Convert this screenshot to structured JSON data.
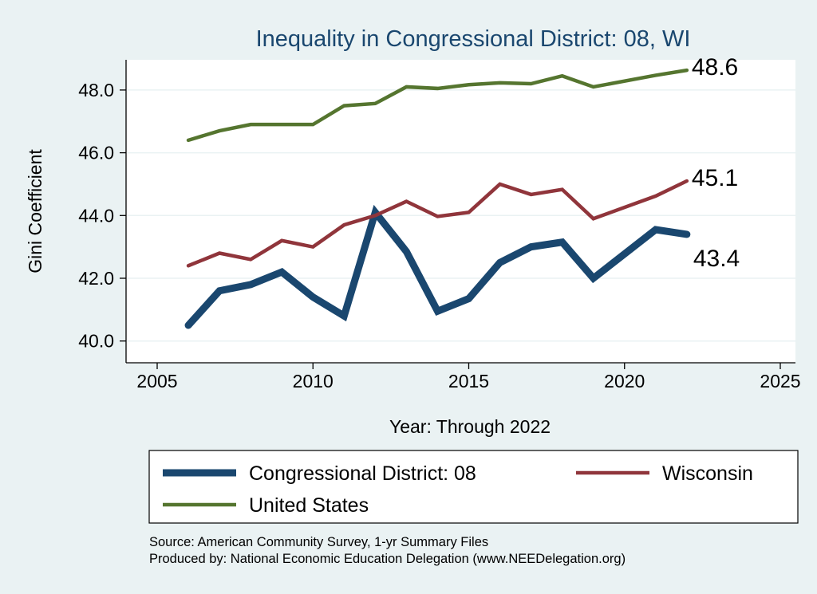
{
  "chart_data": {
    "type": "line",
    "title": "Inequality in Congressional District:  08, WI",
    "xlabel": "Year: Through 2022",
    "ylabel": "Gini Coefficient",
    "xlim": [
      2004,
      2026
    ],
    "ylim": [
      39.5,
      49.2
    ],
    "xticks": [
      2005,
      2010,
      2015,
      2020,
      2025
    ],
    "yticks": [
      40,
      42,
      44,
      46,
      48
    ],
    "ytick_labels": [
      "40.0",
      "42.0",
      "44.0",
      "46.0",
      "48.0"
    ],
    "grid": true,
    "legend_position": "bottom",
    "series": [
      {
        "name": "Congressional District:  08",
        "color": "#1a476f",
        "end_label": "43.4",
        "x": [
          2006,
          2007,
          2008,
          2009,
          2010,
          2011,
          2012,
          2013,
          2014,
          2015,
          2016,
          2017,
          2018,
          2019,
          2021,
          2022
        ],
        "values": [
          40.5,
          41.6,
          41.8,
          42.2,
          41.4,
          40.8,
          44.1,
          42.85,
          40.95,
          41.35,
          42.5,
          43.0,
          43.15,
          42.0,
          43.55,
          43.4
        ]
      },
      {
        "name": "Wisconsin",
        "color": "#90353b",
        "end_label": "45.1",
        "x": [
          2006,
          2007,
          2008,
          2009,
          2010,
          2011,
          2012,
          2013,
          2014,
          2015,
          2016,
          2017,
          2018,
          2019,
          2021,
          2022
        ],
        "values": [
          42.4,
          42.8,
          42.6,
          43.2,
          43.0,
          43.7,
          44.0,
          44.45,
          43.97,
          44.1,
          45.0,
          44.67,
          44.83,
          43.9,
          44.62,
          45.1
        ]
      },
      {
        "name": "United States",
        "color": "#55752f",
        "end_label": "48.6",
        "x": [
          2006,
          2007,
          2008,
          2009,
          2010,
          2011,
          2012,
          2013,
          2014,
          2015,
          2016,
          2017,
          2018,
          2019,
          2021,
          2022
        ],
        "values": [
          46.4,
          46.7,
          46.9,
          46.9,
          46.9,
          47.5,
          47.57,
          48.1,
          48.05,
          48.17,
          48.23,
          48.2,
          48.45,
          48.1,
          48.47,
          48.63
        ]
      }
    ],
    "notes": [
      "Source: American Community Survey, 1-yr Summary Files",
      "Produced by: National Economic Education Delegation (www.NEEDelegation.org)"
    ]
  }
}
